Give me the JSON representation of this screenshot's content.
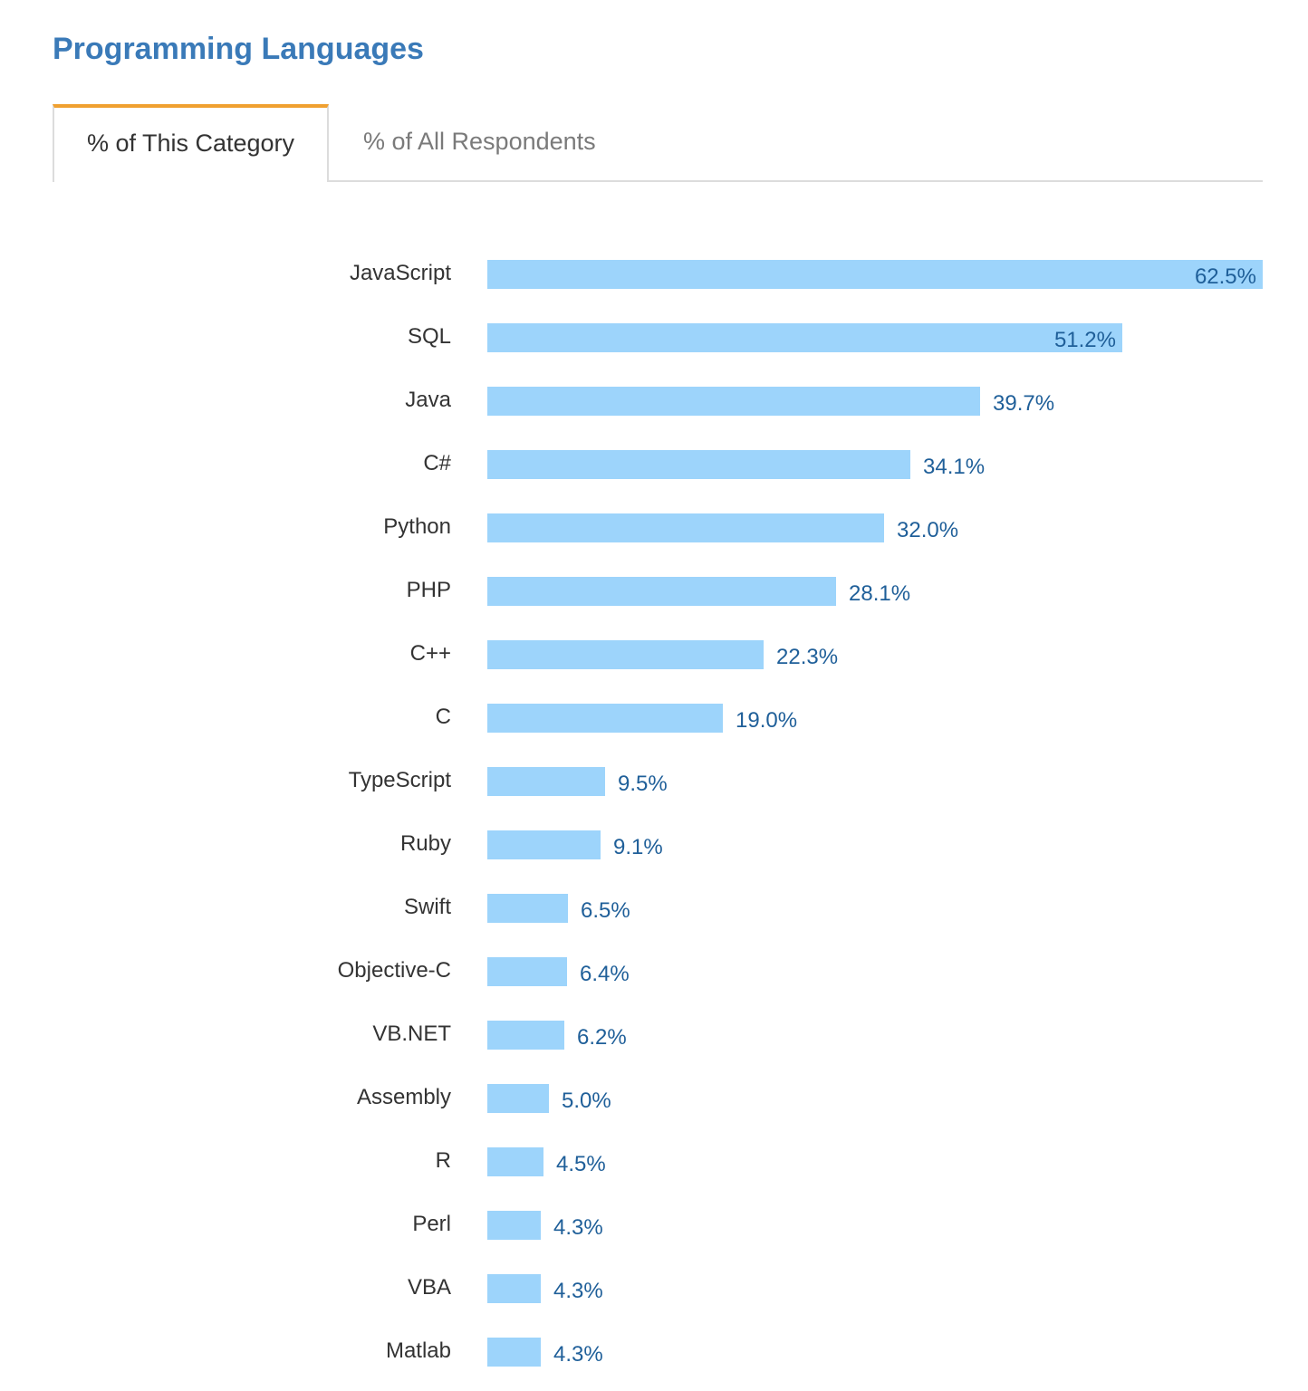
{
  "header": {
    "title": "Programming Languages"
  },
  "tabs": [
    {
      "label": "% of This Category",
      "active": true
    },
    {
      "label": "% of All Respondents",
      "active": false
    }
  ],
  "colors": {
    "bar": "#9dd4fb",
    "value_label": "#1f5f99",
    "title": "#3a7ab8",
    "tab_accent": "#f0a030"
  },
  "chart_data": {
    "type": "bar",
    "orientation": "horizontal",
    "categories": [
      "JavaScript",
      "SQL",
      "Java",
      "C#",
      "Python",
      "PHP",
      "C++",
      "C",
      "TypeScript",
      "Ruby",
      "Swift",
      "Objective-C",
      "VB.NET",
      "Assembly",
      "R",
      "Perl",
      "VBA",
      "Matlab"
    ],
    "values": [
      62.5,
      51.2,
      39.7,
      34.1,
      32.0,
      28.1,
      22.3,
      19.0,
      9.5,
      9.1,
      6.5,
      6.4,
      6.2,
      5.0,
      4.5,
      4.3,
      4.3,
      4.3
    ],
    "value_labels": [
      "62.5%",
      "51.2%",
      "39.7%",
      "34.1%",
      "32.0%",
      "28.1%",
      "22.3%",
      "19.0%",
      "9.5%",
      "9.1%",
      "6.5%",
      "6.4%",
      "6.2%",
      "5.0%",
      "4.5%",
      "4.3%",
      "4.3%",
      "4.3%"
    ],
    "xlim": [
      0,
      62.5
    ],
    "grid": false,
    "legend": "none"
  }
}
